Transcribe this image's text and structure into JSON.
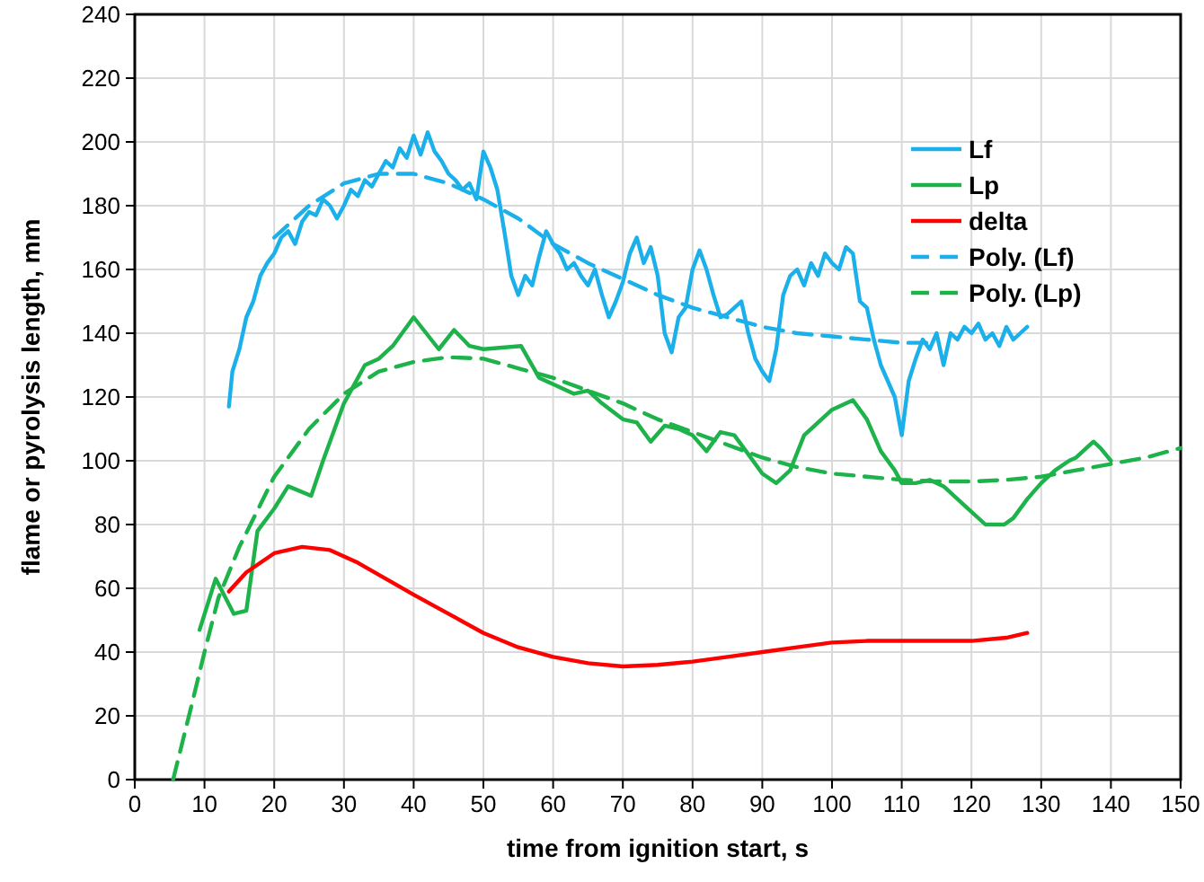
{
  "chart_data": {
    "type": "line",
    "xlabel": "time from ignition start, s",
    "ylabel": "flame or pyrolysis length, mm",
    "xlim": [
      0,
      150
    ],
    "ylim": [
      0,
      240
    ],
    "xticks": [
      0,
      10,
      20,
      30,
      40,
      50,
      60,
      70,
      80,
      90,
      100,
      110,
      120,
      130,
      140,
      150
    ],
    "yticks": [
      0,
      20,
      40,
      60,
      80,
      100,
      120,
      140,
      160,
      180,
      200,
      220,
      240
    ],
    "grid": true,
    "legend": "top right",
    "marker": "none",
    "series": [
      {
        "name": "Lf",
        "color": "#1cb0ea",
        "line_style": "solid",
        "x": [
          13.5,
          14,
          15,
          16,
          17,
          18,
          19,
          20,
          21,
          22,
          23,
          24,
          25,
          26,
          27,
          28,
          29,
          30,
          31,
          32,
          33,
          34,
          35,
          36,
          37,
          38,
          39,
          40,
          41,
          42,
          43,
          44,
          45,
          46,
          47,
          48,
          49,
          50,
          51,
          52,
          53,
          54,
          55,
          56,
          57,
          58,
          59,
          60,
          61,
          62,
          63,
          64,
          65,
          66,
          67,
          68,
          69,
          70,
          71,
          72,
          73,
          74,
          75,
          76,
          77,
          78,
          79,
          80,
          81,
          82,
          83,
          84,
          85,
          86,
          87,
          88,
          89,
          90,
          91,
          92,
          93,
          94,
          95,
          96,
          97,
          98,
          99,
          100,
          101,
          102,
          103,
          104,
          105,
          106,
          107,
          108,
          109,
          110,
          111,
          112,
          113,
          114,
          115,
          116,
          117,
          118,
          119,
          120,
          121,
          122,
          123,
          124,
          125,
          126,
          127,
          128
        ],
        "values": [
          117,
          128,
          135,
          145,
          150,
          158,
          162,
          165,
          170,
          172,
          168,
          175,
          178,
          177,
          182,
          180,
          176,
          180,
          185,
          183,
          188,
          186,
          190,
          194,
          192,
          198,
          195,
          202,
          196,
          203,
          197,
          194,
          190,
          188,
          185,
          187,
          182,
          197,
          192,
          185,
          172,
          158,
          152,
          158,
          155,
          164,
          172,
          168,
          165,
          160,
          162,
          158,
          155,
          160,
          152,
          145,
          150,
          156,
          165,
          170,
          162,
          167,
          158,
          140,
          134,
          145,
          148,
          160,
          166,
          160,
          152,
          145,
          146,
          148,
          150,
          140,
          132,
          128,
          125,
          135,
          152,
          158,
          160,
          155,
          162,
          158,
          165,
          162,
          160,
          167,
          165,
          150,
          148,
          138,
          130,
          125,
          120,
          108,
          125,
          132,
          138,
          135,
          140,
          130,
          140,
          138,
          142,
          140,
          143,
          138,
          140,
          136,
          142,
          138,
          140,
          142
        ]
      },
      {
        "name": "Lp",
        "color": "#1db34a",
        "line_style": "solid",
        "x": [
          9.3,
          11.6,
          14.2,
          16,
          17.6,
          20,
          22,
          25.3,
          27,
          30,
          33,
          35,
          37,
          40,
          43.6,
          45.8,
          48,
          50,
          55.4,
          58,
          60,
          63,
          65,
          67,
          70,
          72,
          74,
          76,
          78,
          80,
          82,
          84,
          86,
          88,
          90,
          92,
          94,
          96,
          98,
          100,
          103,
          105,
          107,
          109,
          110,
          112,
          114,
          116,
          118,
          120,
          122,
          124.7,
          126,
          128,
          130,
          132,
          134,
          135,
          137.5,
          138.5,
          140
        ],
        "values": [
          47,
          63,
          52,
          53,
          78,
          85,
          92,
          89,
          100,
          118,
          130,
          132,
          136,
          145,
          135,
          141,
          136,
          135,
          136,
          126,
          124,
          121,
          122,
          118,
          113,
          112,
          106,
          111,
          110,
          108,
          103,
          109,
          108,
          102,
          96,
          93,
          97,
          108,
          112,
          116,
          119,
          113,
          103,
          97,
          93,
          93,
          94,
          92,
          88,
          84,
          80,
          80,
          82,
          88,
          93,
          97,
          100,
          101,
          106,
          104,
          100
        ]
      },
      {
        "name": "delta",
        "color": "#ff0000",
        "line_style": "solid",
        "x": [
          13.5,
          16,
          20,
          24,
          28,
          32,
          36,
          40,
          45,
          50,
          55,
          60,
          65,
          70,
          75,
          80,
          85,
          90,
          95,
          100,
          105,
          110,
          115,
          120,
          125,
          128
        ],
        "values": [
          59,
          65,
          71,
          73,
          72,
          68,
          63,
          58,
          52,
          46,
          41.5,
          38.5,
          36.5,
          35.5,
          36,
          37,
          38.5,
          40,
          41.5,
          43,
          43.5,
          43.5,
          43.5,
          43.5,
          44.5,
          46
        ]
      },
      {
        "name": "Poly. (Lf)",
        "color": "#1cb0ea",
        "line_style": "dashed",
        "x": [
          20,
          25,
          30,
          35,
          40,
          45,
          50,
          55,
          60,
          65,
          70,
          75,
          80,
          85,
          90,
          95,
          100,
          105,
          110,
          115
        ],
        "values": [
          170,
          180,
          187,
          190,
          190,
          187,
          182,
          176,
          168,
          162,
          157,
          152,
          148,
          145,
          142,
          140,
          139,
          138,
          137,
          137
        ]
      },
      {
        "name": "Poly. (Lp)",
        "color": "#1db34a",
        "line_style": "dashed",
        "x": [
          5.5,
          8,
          10,
          12,
          15,
          20,
          25,
          30,
          35,
          40,
          45,
          50,
          55,
          60,
          65,
          70,
          75,
          80,
          85,
          90,
          95,
          100,
          105,
          110,
          115,
          120,
          125,
          130,
          135,
          140,
          145,
          150
        ],
        "values": [
          0,
          22,
          40,
          57,
          73,
          95,
          110,
          121,
          128,
          131,
          132.5,
          132,
          129,
          126,
          122,
          118,
          113,
          109,
          105,
          101,
          98,
          96,
          95,
          94,
          93.5,
          93.5,
          94,
          95,
          97,
          99,
          101,
          104
        ]
      }
    ]
  }
}
